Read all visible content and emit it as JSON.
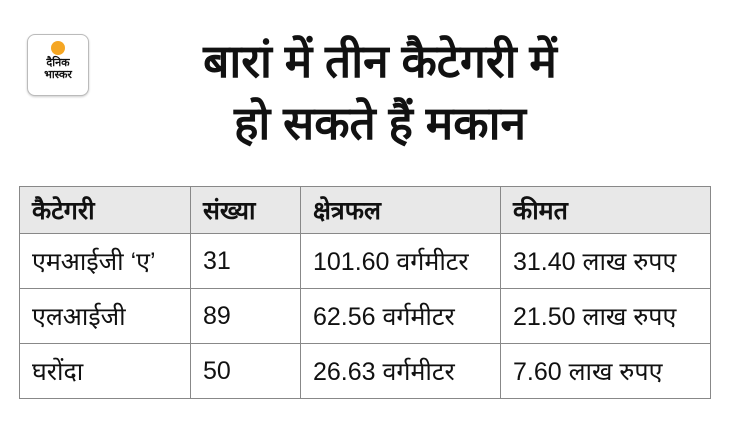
{
  "logo": {
    "line1": "दैनिक",
    "line2": "भास्कर",
    "accent": "#f5a623"
  },
  "title": {
    "line1": "बारां में तीन कैटेगरी में",
    "line2": "हो सकते हैं मकान"
  },
  "table": {
    "headers": [
      "कैटेगरी",
      "संख्या",
      "क्षेत्रफल",
      "कीमत"
    ],
    "rows": [
      [
        "एमआईजी ‘ए’",
        "31",
        "101.60 वर्गमीटर",
        "31.40 लाख रुपए"
      ],
      [
        "एलआईजी",
        "89",
        "62.56 वर्गमीटर",
        "21.50 लाख रुपए"
      ],
      [
        "घरोंदा",
        "50",
        "26.63 वर्गमीटर",
        "7.60 लाख रुपए"
      ]
    ]
  }
}
